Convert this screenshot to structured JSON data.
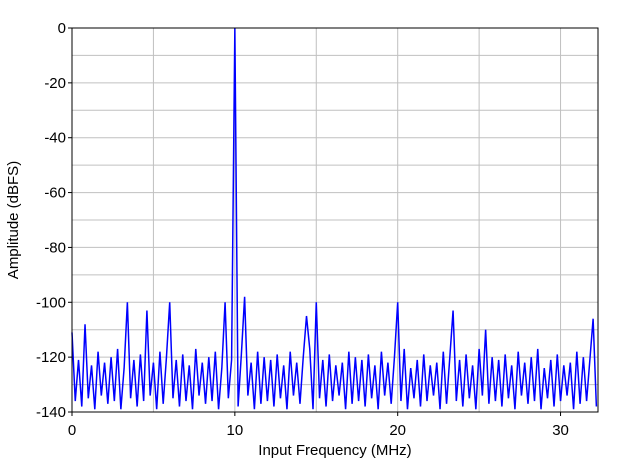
{
  "chart_data": {
    "type": "line",
    "xlabel": "Input Frequency (MHz)",
    "ylabel": "Amplitude (dBFS)",
    "xlim": [
      0,
      32.3
    ],
    "ylim": [
      -140,
      0
    ],
    "xticks": [
      0,
      10,
      20,
      30
    ],
    "yticks": [
      -140,
      -120,
      -100,
      -80,
      -60,
      -40,
      -20,
      0
    ],
    "xgrid": [
      5,
      10,
      15,
      20,
      25,
      30
    ],
    "ygrid": [
      -130,
      -120,
      -110,
      -100,
      -90,
      -80,
      -70,
      -60,
      -50,
      -40,
      -30,
      -20,
      -10
    ],
    "x": [
      0,
      0.2,
      0.4,
      0.6,
      0.8,
      1,
      1.2,
      1.4,
      1.6,
      1.8,
      2,
      2.2,
      2.4,
      2.6,
      2.8,
      3,
      3.2,
      3.4,
      3.6,
      3.8,
      4,
      4.2,
      4.4,
      4.6,
      4.8,
      5,
      5.2,
      5.4,
      5.6,
      5.8,
      6,
      6.2,
      6.4,
      6.6,
      6.8,
      7,
      7.2,
      7.4,
      7.6,
      7.8,
      8,
      8.2,
      8.4,
      8.6,
      8.8,
      9,
      9.2,
      9.4,
      9.6,
      9.8,
      10,
      10.2,
      10.4,
      10.6,
      10.8,
      11,
      11.2,
      11.4,
      11.6,
      11.8,
      12,
      12.2,
      12.4,
      12.6,
      12.8,
      13,
      13.2,
      13.4,
      13.6,
      13.8,
      14,
      14.2,
      14.4,
      14.6,
      14.8,
      15,
      15.2,
      15.4,
      15.6,
      15.8,
      16,
      16.2,
      16.4,
      16.6,
      16.8,
      17,
      17.2,
      17.4,
      17.6,
      17.8,
      18,
      18.2,
      18.4,
      18.6,
      18.8,
      19,
      19.2,
      19.4,
      19.6,
      19.8,
      20,
      20.2,
      20.4,
      20.6,
      20.8,
      21,
      21.2,
      21.4,
      21.6,
      21.8,
      22,
      22.2,
      22.4,
      22.6,
      22.8,
      23,
      23.2,
      23.4,
      23.6,
      23.8,
      24,
      24.2,
      24.4,
      24.6,
      24.8,
      25,
      25.2,
      25.4,
      25.6,
      25.8,
      26,
      26.2,
      26.4,
      26.6,
      26.8,
      27,
      27.2,
      27.4,
      27.6,
      27.8,
      28,
      28.2,
      28.4,
      28.6,
      28.8,
      29,
      29.2,
      29.4,
      29.6,
      29.8,
      30,
      30.2,
      30.4,
      30.6,
      30.8,
      31,
      31.2,
      31.4,
      31.6,
      31.8,
      32,
      32.2
    ],
    "series": [
      {
        "color": "#0000ff",
        "values": [
          -111,
          -136,
          -121,
          -138,
          -108,
          -135,
          -123,
          -139,
          -118,
          -134,
          -122,
          -137,
          -120,
          -136,
          -117,
          -139,
          -124,
          -100,
          -135,
          -121,
          -138,
          -119,
          -136,
          -103,
          -134,
          -122,
          -139,
          -118,
          -137,
          -120,
          -100,
          -135,
          -121,
          -138,
          -119,
          -136,
          -123,
          -139,
          -117,
          -134,
          -122,
          -137,
          -120,
          -136,
          -118,
          -139,
          -124,
          -100,
          -135,
          -121,
          0,
          -138,
          -119,
          -98,
          -134,
          -122,
          -139,
          -118,
          -137,
          -120,
          -136,
          -121,
          -138,
          -119,
          -135,
          -123,
          -139,
          -118,
          -134,
          -122,
          -137,
          -120,
          -105,
          -117,
          -139,
          -100,
          -135,
          -121,
          -138,
          -119,
          -136,
          -123,
          -134,
          -122,
          -139,
          -118,
          -137,
          -120,
          -136,
          -121,
          -138,
          -119,
          -135,
          -123,
          -139,
          -118,
          -134,
          -122,
          -137,
          -120,
          -100,
          -136,
          -117,
          -139,
          -124,
          -135,
          -121,
          -138,
          -119,
          -136,
          -123,
          -134,
          -122,
          -139,
          -118,
          -137,
          -120,
          -103,
          -136,
          -121,
          -138,
          -119,
          -135,
          -123,
          -139,
          -117,
          -134,
          -110,
          -137,
          -120,
          -136,
          -121,
          -138,
          -119,
          -135,
          -123,
          -139,
          -118,
          -134,
          -122,
          -137,
          -120,
          -136,
          -117,
          -139,
          -124,
          -135,
          -121,
          -138,
          -119,
          -136,
          -123,
          -134,
          -122,
          -139,
          -118,
          -137,
          -120,
          -136,
          -121,
          -106,
          -138
        ]
      }
    ]
  }
}
